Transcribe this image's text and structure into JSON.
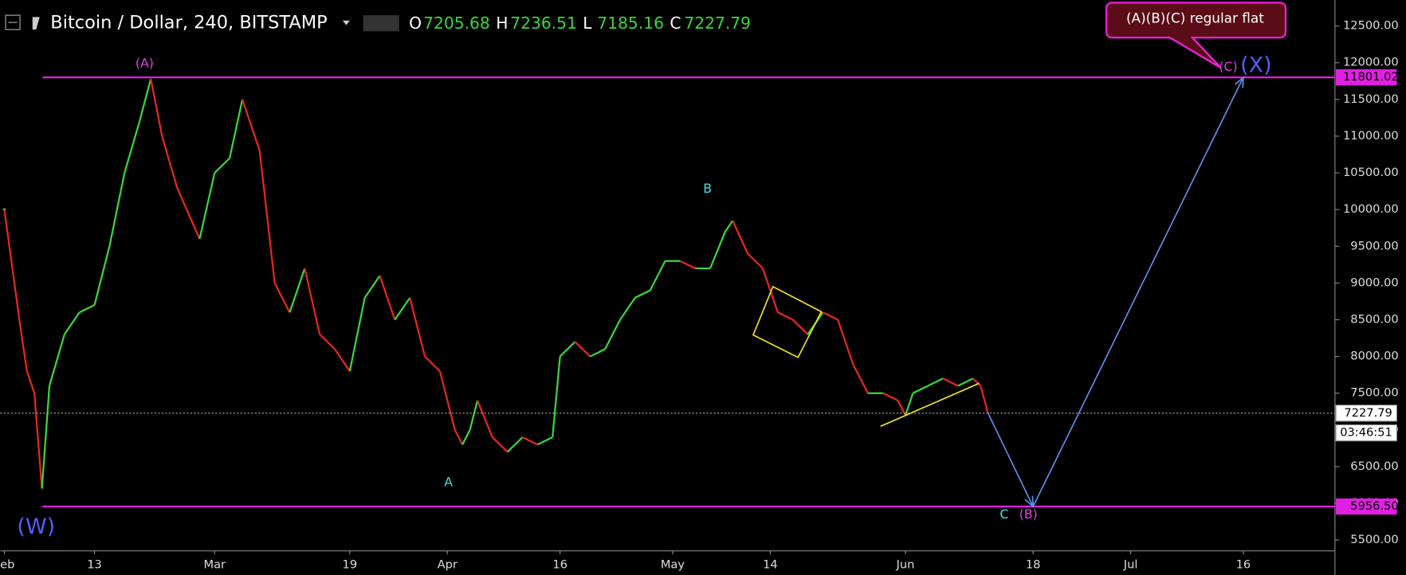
{
  "chart_data": {
    "type": "line",
    "title": "Bitcoin / Dollar, 240, BITSTAMP",
    "ohlc": [
      {
        "label": "O",
        "value": 7205.68
      },
      {
        "label": "H",
        "value": 7236.51
      },
      {
        "label": "L",
        "value": 7185.16
      },
      {
        "label": "C",
        "value": 7227.79
      }
    ],
    "x": [
      32,
      34,
      35,
      36,
      37,
      38,
      40,
      42,
      44,
      46,
      48,
      50,
      51.5,
      53,
      55,
      58,
      60,
      62,
      63.7,
      66,
      68,
      70,
      72,
      74,
      76,
      78,
      80,
      82,
      84,
      86,
      88,
      90,
      92,
      93,
      94,
      95,
      97,
      99,
      101,
      103,
      105,
      106,
      108,
      110,
      112,
      114,
      116,
      118,
      120,
      122,
      124,
      126,
      128,
      129,
      131,
      133,
      135,
      137,
      139,
      141,
      143,
      145,
      147,
      149,
      151,
      152,
      153,
      155,
      157,
      159,
      161,
      162,
      163
    ],
    "series": [
      {
        "name": "BTCUSD",
        "up_color": "#3ad63a",
        "down_color": "#e8261f",
        "values": [
          10000,
          8500,
          7800,
          7500,
          6200,
          7600,
          8300,
          8600,
          8700,
          9500,
          10500,
          11200,
          11780,
          11000,
          10300,
          9600,
          10500,
          10700,
          11500,
          10800,
          9000,
          8600,
          9200,
          8300,
          8100,
          7800,
          8800,
          9100,
          8500,
          8800,
          8000,
          7800,
          7000,
          6800,
          7000,
          7400,
          6900,
          6700,
          6900,
          6800,
          6900,
          8000,
          8200,
          8000,
          8100,
          8500,
          8800,
          8900,
          9300,
          9300,
          9200,
          9200,
          9700,
          9850,
          9400,
          9200,
          8600,
          8500,
          8300,
          8600,
          8500,
          7900,
          7500,
          7500,
          7400,
          7200,
          7500,
          7600,
          7700,
          7600,
          7700,
          7600,
          7227.79
        ]
      }
    ],
    "projection": {
      "color": "#5b8fe8",
      "x": [
        163,
        169,
        197
      ],
      "values": [
        7227.79,
        5956.5,
        11801.02
      ]
    },
    "levels": [
      {
        "value": 11801.02,
        "label": "11801.02"
      },
      {
        "value": 5956.5,
        "label": "5956.50"
      }
    ],
    "level_color": "#e020e0",
    "last_price": 7227.79,
    "countdown": "03:46:51",
    "callout": "(A)(B)(C) regular flat",
    "wave_labels": [
      "(A)",
      "(W)",
      "A",
      "B",
      "C",
      "(B)",
      "(C)",
      "(X)"
    ],
    "xlim": [
      31.45,
      209.2
    ],
    "ylim": [
      5353.4,
      12854
    ],
    "xticks": [
      {
        "value": 32,
        "label": "Feb"
      },
      {
        "value": 44,
        "label": "13"
      },
      {
        "value": 60,
        "label": "Mar"
      },
      {
        "value": 78,
        "label": "19"
      },
      {
        "value": 91,
        "label": "Apr"
      },
      {
        "value": 106,
        "label": "16"
      },
      {
        "value": 121,
        "label": "May"
      },
      {
        "value": 134,
        "label": "14"
      },
      {
        "value": 152,
        "label": "Jun"
      },
      {
        "value": 169,
        "label": "18"
      },
      {
        "value": 182,
        "label": "Jul"
      },
      {
        "value": 197,
        "label": "16"
      }
    ],
    "yticks": [
      {
        "value": 5500,
        "label": "5500.00"
      },
      {
        "value": 6000,
        "label": "6000.00"
      },
      {
        "value": 6500,
        "label": "6500.00"
      },
      {
        "value": 7000,
        "label": "7000.00"
      },
      {
        "value": 7500,
        "label": "7500.00"
      },
      {
        "value": 8000,
        "label": "8000.00"
      },
      {
        "value": 8500,
        "label": "8500.00"
      },
      {
        "value": 9000,
        "label": "9000.00"
      },
      {
        "value": 9500,
        "label": "9500.00"
      },
      {
        "value": 10000,
        "label": "10000.00"
      },
      {
        "value": 10500,
        "label": "10500.00"
      },
      {
        "value": 11000,
        "label": "11000.00"
      },
      {
        "value": 11500,
        "label": "11500.00"
      },
      {
        "value": 12000,
        "label": "12000.00"
      },
      {
        "value": 12500,
        "label": "12500.00"
      }
    ]
  }
}
